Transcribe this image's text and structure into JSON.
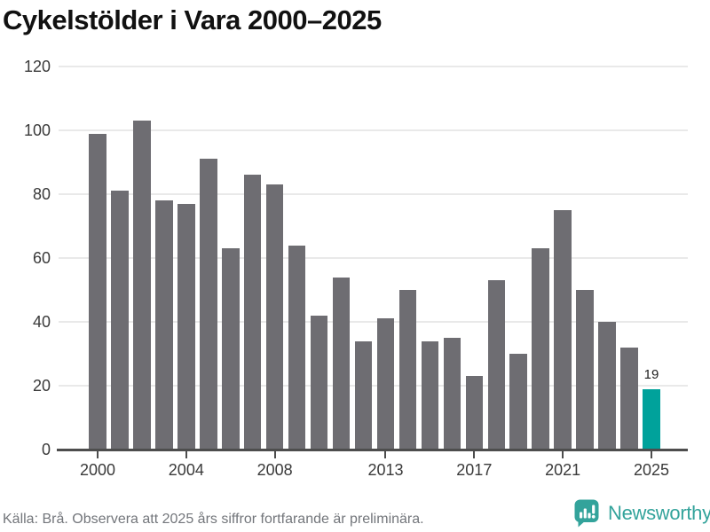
{
  "title": "Cykelstölder i Vara 2000–2025",
  "chart_data": {
    "type": "bar",
    "title": "Cykelstölder i Vara 2000–2025",
    "categories": [
      "2000",
      "2001",
      "2002",
      "2003",
      "2004",
      "2005",
      "2006",
      "2007",
      "2008",
      "2009",
      "2010",
      "2011",
      "2012",
      "2013",
      "2014",
      "2015",
      "2016",
      "2017",
      "2018",
      "2019",
      "2020",
      "2021",
      "2022",
      "2023",
      "2024",
      "2025"
    ],
    "values": [
      99,
      81,
      103,
      78,
      77,
      91,
      63,
      86,
      83,
      64,
      42,
      54,
      34,
      41,
      50,
      34,
      35,
      23,
      53,
      30,
      63,
      75,
      50,
      40,
      32,
      19
    ],
    "xlabel": "",
    "ylabel": "",
    "ylim": [
      0,
      120
    ],
    "yticks": [
      0,
      20,
      40,
      60,
      80,
      100,
      120
    ],
    "xtick_labels": [
      "2000",
      "2004",
      "2008",
      "2013",
      "2017",
      "2021",
      "2025"
    ],
    "grid": true,
    "legend": "none",
    "bar_color": "#6e6d72",
    "highlight_category": "2025",
    "highlight_color": "#00a29b",
    "highlight_value_label": "19"
  },
  "footer": {
    "source_text": "Källa: Brå. Observera att 2025 års siffror fortfarande är preliminära.",
    "brand_name": "Newsworthy",
    "brand_color": "#33a39b"
  }
}
